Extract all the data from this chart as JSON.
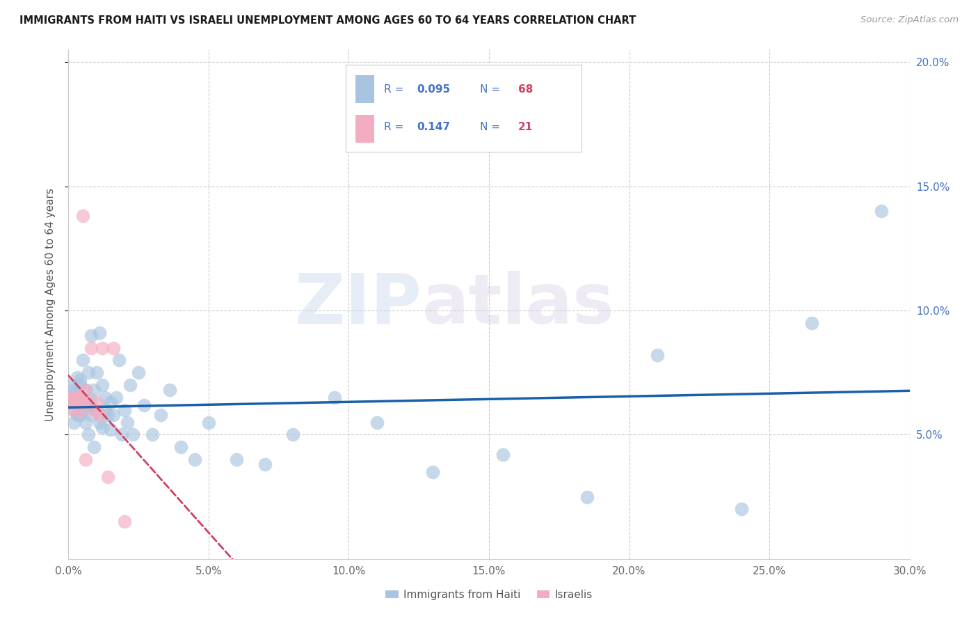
{
  "title": "IMMIGRANTS FROM HAITI VS ISRAELI UNEMPLOYMENT AMONG AGES 60 TO 64 YEARS CORRELATION CHART",
  "source": "Source: ZipAtlas.com",
  "ylabel": "Unemployment Among Ages 60 to 64 years",
  "xlim": [
    0.0,
    0.3
  ],
  "ylim": [
    0.0,
    0.205
  ],
  "legend1_r": "0.095",
  "legend1_n": "68",
  "legend2_r": "0.147",
  "legend2_n": "21",
  "haiti_color": "#a8c4e0",
  "israel_color": "#f4adc0",
  "trendline_haiti_color": "#1a5fa8",
  "trendline_israel_color": "#d04060",
  "watermark_zip": "ZIP",
  "watermark_atlas": "atlas",
  "background_color": "#ffffff",
  "haiti_x": [
    0.001,
    0.001,
    0.001,
    0.002,
    0.002,
    0.002,
    0.002,
    0.003,
    0.003,
    0.003,
    0.003,
    0.004,
    0.004,
    0.004,
    0.004,
    0.005,
    0.005,
    0.005,
    0.006,
    0.006,
    0.006,
    0.007,
    0.007,
    0.007,
    0.008,
    0.008,
    0.008,
    0.009,
    0.009,
    0.01,
    0.01,
    0.011,
    0.011,
    0.012,
    0.012,
    0.013,
    0.013,
    0.014,
    0.015,
    0.015,
    0.016,
    0.017,
    0.018,
    0.019,
    0.02,
    0.021,
    0.022,
    0.023,
    0.025,
    0.027,
    0.03,
    0.033,
    0.036,
    0.04,
    0.045,
    0.05,
    0.06,
    0.07,
    0.08,
    0.095,
    0.11,
    0.13,
    0.155,
    0.185,
    0.21,
    0.24,
    0.265,
    0.29
  ],
  "haiti_y": [
    0.065,
    0.07,
    0.063,
    0.065,
    0.068,
    0.06,
    0.055,
    0.067,
    0.058,
    0.065,
    0.073,
    0.063,
    0.07,
    0.058,
    0.072,
    0.08,
    0.064,
    0.06,
    0.063,
    0.068,
    0.055,
    0.05,
    0.062,
    0.075,
    0.064,
    0.058,
    0.09,
    0.068,
    0.045,
    0.075,
    0.06,
    0.091,
    0.055,
    0.07,
    0.053,
    0.06,
    0.065,
    0.058,
    0.063,
    0.052,
    0.058,
    0.065,
    0.08,
    0.05,
    0.06,
    0.055,
    0.07,
    0.05,
    0.075,
    0.062,
    0.05,
    0.058,
    0.068,
    0.045,
    0.04,
    0.055,
    0.04,
    0.038,
    0.05,
    0.065,
    0.055,
    0.035,
    0.042,
    0.025,
    0.082,
    0.02,
    0.095,
    0.14
  ],
  "israel_x": [
    0.001,
    0.001,
    0.002,
    0.002,
    0.003,
    0.003,
    0.004,
    0.004,
    0.005,
    0.005,
    0.006,
    0.006,
    0.007,
    0.008,
    0.009,
    0.01,
    0.011,
    0.012,
    0.014,
    0.016,
    0.02
  ],
  "israel_y": [
    0.065,
    0.063,
    0.065,
    0.06,
    0.063,
    0.065,
    0.065,
    0.06,
    0.138,
    0.063,
    0.068,
    0.04,
    0.063,
    0.085,
    0.06,
    0.063,
    0.058,
    0.085,
    0.033,
    0.085,
    0.015
  ],
  "xtick_vals": [
    0.0,
    0.05,
    0.1,
    0.15,
    0.2,
    0.25,
    0.3
  ],
  "xtick_labels": [
    "0.0%",
    "5.0%",
    "10.0%",
    "15.0%",
    "20.0%",
    "25.0%",
    "30.0%"
  ],
  "ytick_vals": [
    0.05,
    0.1,
    0.15,
    0.2
  ],
  "ytick_labels": [
    "5.0%",
    "10.0%",
    "15.0%",
    "20.0%"
  ]
}
